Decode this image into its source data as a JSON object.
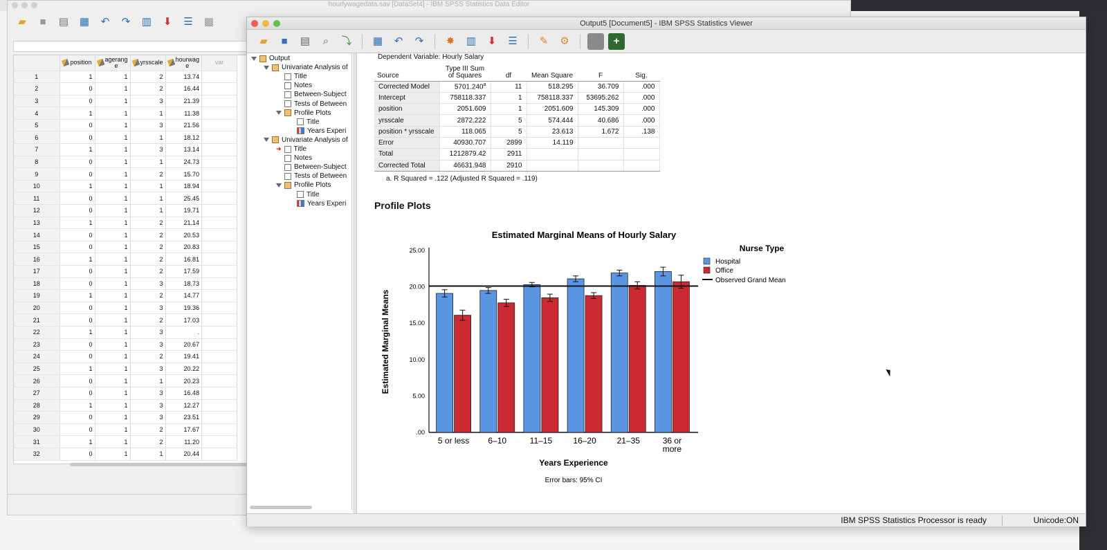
{
  "data_editor": {
    "title": "hourlywagedata.sav [DataSet4] - IBM SPSS Statistics Data Editor",
    "columns": [
      {
        "key": "position",
        "label": "position"
      },
      {
        "key": "agerange",
        "label": "agerang\ne"
      },
      {
        "key": "yrsscale",
        "label": "yrsscale"
      },
      {
        "key": "hourwage",
        "label": "hourwag\ne"
      },
      {
        "key": "var",
        "label": "var"
      }
    ],
    "rows": [
      [
        "1",
        "1",
        "1",
        "2",
        "13.74"
      ],
      [
        "2",
        "0",
        "1",
        "2",
        "16.44"
      ],
      [
        "3",
        "0",
        "1",
        "3",
        "21.39"
      ],
      [
        "4",
        "1",
        "1",
        "1",
        "11.38"
      ],
      [
        "5",
        "0",
        "1",
        "3",
        "21.56"
      ],
      [
        "6",
        "0",
        "1",
        "1",
        "18.12"
      ],
      [
        "7",
        "1",
        "1",
        "3",
        "13.14"
      ],
      [
        "8",
        "0",
        "1",
        "1",
        "24.73"
      ],
      [
        "9",
        "0",
        "1",
        "2",
        "15.70"
      ],
      [
        "10",
        "1",
        "1",
        "1",
        "18.94"
      ],
      [
        "11",
        "0",
        "1",
        "1",
        "25.45"
      ],
      [
        "12",
        "0",
        "1",
        "1",
        "19.71"
      ],
      [
        "13",
        "1",
        "1",
        "2",
        "21.14"
      ],
      [
        "14",
        "0",
        "1",
        "2",
        "20.53"
      ],
      [
        "15",
        "0",
        "1",
        "2",
        "20.83"
      ],
      [
        "16",
        "1",
        "1",
        "2",
        "16.81"
      ],
      [
        "17",
        "0",
        "1",
        "2",
        "17.59"
      ],
      [
        "18",
        "0",
        "1",
        "3",
        "18.73"
      ],
      [
        "19",
        "1",
        "1",
        "2",
        "14.77"
      ],
      [
        "20",
        "0",
        "1",
        "3",
        "19.36"
      ],
      [
        "21",
        "0",
        "1",
        "2",
        "17.03"
      ],
      [
        "22",
        "1",
        "1",
        "3",
        "."
      ],
      [
        "23",
        "0",
        "1",
        "3",
        "20.67"
      ],
      [
        "24",
        "0",
        "1",
        "2",
        "19.41"
      ],
      [
        "25",
        "1",
        "1",
        "3",
        "20.22"
      ],
      [
        "26",
        "0",
        "1",
        "1",
        "20.23"
      ],
      [
        "27",
        "0",
        "1",
        "3",
        "16.48"
      ],
      [
        "28",
        "1",
        "1",
        "3",
        "12.27"
      ],
      [
        "29",
        "0",
        "1",
        "3",
        "23.51"
      ],
      [
        "30",
        "0",
        "1",
        "2",
        "17.67"
      ],
      [
        "31",
        "1",
        "1",
        "2",
        "11.20"
      ],
      [
        "32",
        "0",
        "1",
        "1",
        "20.44"
      ]
    ]
  },
  "viewer": {
    "title": "Output5 [Document5] - IBM SPSS Statistics Viewer",
    "outline": [
      {
        "label": "Output",
        "level": 0,
        "kind": "book",
        "expanded": true
      },
      {
        "label": "Univariate Analysis of",
        "level": 1,
        "kind": "book",
        "expanded": true
      },
      {
        "label": "Title",
        "level": 2,
        "kind": "doc"
      },
      {
        "label": "Notes",
        "level": 2,
        "kind": "doc"
      },
      {
        "label": "Between-Subject",
        "level": 2,
        "kind": "doc"
      },
      {
        "label": "Tests of Between",
        "level": 2,
        "kind": "doc"
      },
      {
        "label": "Profile Plots",
        "level": 2,
        "kind": "book",
        "expanded": true
      },
      {
        "label": "Title",
        "level": 3,
        "kind": "doc"
      },
      {
        "label": "Years Experi",
        "level": 3,
        "kind": "chart"
      },
      {
        "label": "Univariate Analysis of",
        "level": 1,
        "kind": "book",
        "expanded": true
      },
      {
        "label": "Title",
        "level": 2,
        "kind": "doc",
        "current": true
      },
      {
        "label": "Notes",
        "level": 2,
        "kind": "doc"
      },
      {
        "label": "Between-Subject",
        "level": 2,
        "kind": "doc"
      },
      {
        "label": "Tests of Between",
        "level": 2,
        "kind": "doc"
      },
      {
        "label": "Profile Plots",
        "level": 2,
        "kind": "book",
        "expanded": true
      },
      {
        "label": "Title",
        "level": 3,
        "kind": "doc"
      },
      {
        "label": "Years Experi",
        "level": 3,
        "kind": "chart"
      }
    ],
    "dependent_variable": "Dependent Variable:   Hourly Salary",
    "anova": {
      "headers": {
        "source": "Source",
        "ss": "Type III Sum of Squares",
        "df": "df",
        "ms": "Mean Square",
        "f": "F",
        "sig": "Sig."
      },
      "rows": [
        {
          "source": "Corrected Model",
          "ss": "5701.240",
          "ss_sup": "a",
          "df": "11",
          "ms": "518.295",
          "f": "36.709",
          "sig": ".000"
        },
        {
          "source": "Intercept",
          "ss": "758118.337",
          "df": "1",
          "ms": "758118.337",
          "f": "53695.262",
          "sig": ".000"
        },
        {
          "source": "position",
          "ss": "2051.609",
          "df": "1",
          "ms": "2051.609",
          "f": "145.309",
          "sig": ".000"
        },
        {
          "source": "yrsscale",
          "ss": "2872.222",
          "df": "5",
          "ms": "574.444",
          "f": "40.686",
          "sig": ".000"
        },
        {
          "source": "position * yrsscale",
          "ss": "118.065",
          "df": "5",
          "ms": "23.613",
          "f": "1.672",
          "sig": ".138"
        },
        {
          "source": "Error",
          "ss": "40930.707",
          "df": "2899",
          "ms": "14.119",
          "f": "",
          "sig": ""
        },
        {
          "source": "Total",
          "ss": "1212879.42",
          "df": "2911",
          "ms": "",
          "f": "",
          "sig": ""
        },
        {
          "source": "Corrected Total",
          "ss": "46631.948",
          "df": "2910",
          "ms": "",
          "f": "",
          "sig": ""
        }
      ],
      "footnote": "a. R Squared = .122 (Adjusted R Squared = .119)"
    },
    "section_title": "Profile Plots",
    "status": "IBM SPSS Statistics Processor is ready",
    "unicode": "Unicode:ON"
  },
  "chart_data": {
    "type": "bar",
    "title": "Estimated Marginal Means of Hourly Salary",
    "xlabel": "Years Experience",
    "ylabel": "Estimated Marginal Means",
    "legend_title": "Nurse Type",
    "legend_position": "right",
    "note": "Error bars: 95% CI",
    "categories": [
      "5 or less",
      "6–10",
      "11–15",
      "16–20",
      "21–35",
      "36 or more"
    ],
    "category_lines": [
      [
        "5 or less"
      ],
      [
        "6–10"
      ],
      [
        "11–15"
      ],
      [
        "16–20"
      ],
      [
        "21–35"
      ],
      [
        "36 or",
        "more"
      ]
    ],
    "ylim": [
      0,
      25
    ],
    "yticks": [
      ".00",
      "5.00",
      "10.00",
      "15.00",
      "20.00",
      "25.00"
    ],
    "grand_mean": {
      "name": "Observed Grand Mean",
      "value": 20.1
    },
    "series": [
      {
        "name": "Hospital",
        "color": "#5b96e4",
        "values": [
          19.1,
          19.5,
          20.3,
          21.1,
          21.9,
          22.1
        ],
        "ci": [
          0.5,
          0.4,
          0.3,
          0.4,
          0.4,
          0.6
        ]
      },
      {
        "name": "Office",
        "color": "#cc2a33",
        "values": [
          16.1,
          17.8,
          18.5,
          18.8,
          20.2,
          20.7
        ],
        "ci": [
          0.7,
          0.5,
          0.5,
          0.4,
          0.5,
          0.9
        ]
      }
    ]
  }
}
